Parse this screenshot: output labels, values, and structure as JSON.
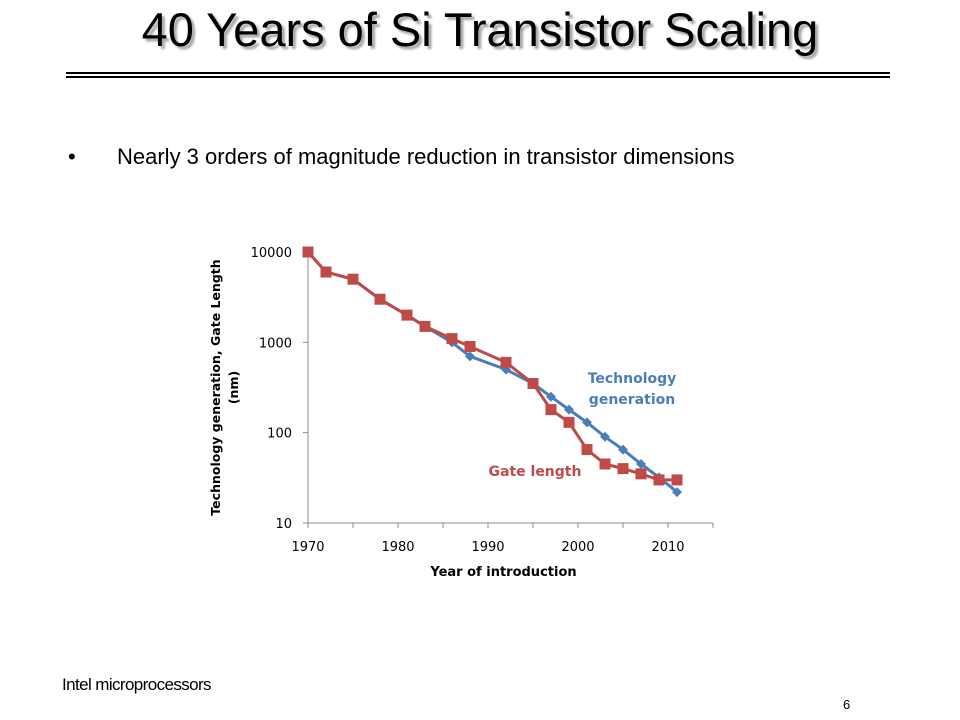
{
  "slide": {
    "title": "40 Years of Si Transistor Scaling",
    "bullet_marker": "•",
    "bullet_text": "Nearly 3 orders of magnitude reduction in transistor dimensions",
    "footer_note": "Intel microprocessors",
    "page_number": "6"
  },
  "chart_data": {
    "type": "line",
    "xlabel": "Year of introduction",
    "ylabel": "Technology generation, Gate Length (nm)",
    "ylabel_lines": [
      "Technology generation, Gate Length",
      "(nm)"
    ],
    "x_ticks": [
      1970,
      1980,
      1990,
      2000,
      2010
    ],
    "x_tick_labels": [
      "1970",
      "1980",
      "1990",
      "2000",
      "2010"
    ],
    "xlim": [
      1970,
      2015
    ],
    "y_scale": "log",
    "y_ticks": [
      10,
      100,
      1000,
      10000
    ],
    "y_tick_labels": [
      "10",
      "100",
      "1000",
      "10000"
    ],
    "ylim": [
      10,
      10000
    ],
    "grid": false,
    "series": [
      {
        "name": "Technology generation",
        "label_lines": [
          "Technology",
          "generation"
        ],
        "color": "#4a7ebb",
        "marker": "diamond",
        "x": [
          1970,
          1972,
          1975,
          1978,
          1981,
          1983,
          1986,
          1988,
          1992,
          1995,
          1997,
          1999,
          2001,
          2003,
          2005,
          2007,
          2009,
          2011
        ],
        "y": [
          10000,
          6000,
          5000,
          3000,
          2000,
          1500,
          1000,
          700,
          500,
          350,
          250,
          180,
          130,
          90,
          65,
          45,
          32,
          22
        ]
      },
      {
        "name": "Gate length",
        "label_lines": [
          "Gate length"
        ],
        "color": "#be4b48",
        "marker": "square",
        "x": [
          1970,
          1972,
          1975,
          1978,
          1981,
          1983,
          1986,
          1988,
          1992,
          1995,
          1997,
          1999,
          2001,
          2003,
          2005,
          2007,
          2009,
          2011
        ],
        "y": [
          10000,
          6000,
          5000,
          3000,
          2000,
          1500,
          1100,
          900,
          600,
          350,
          180,
          130,
          65,
          45,
          40,
          35,
          30,
          30
        ]
      }
    ]
  }
}
